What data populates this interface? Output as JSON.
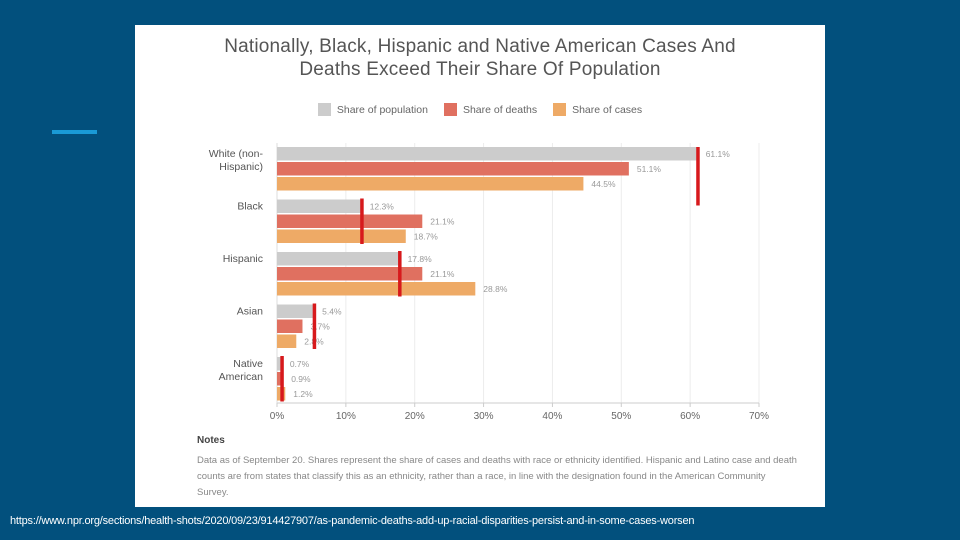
{
  "source_url": "https://www.npr.org/sections/health-shots/2020/09/23/914427907/as-pandemic-deaths-add-up-racial-disparities-persist-and-in-some-cases-worsen",
  "colors": {
    "background": "#02507d",
    "accent": "#1a9ad6",
    "marker": "#d7191c"
  },
  "notes": {
    "title": "Notes",
    "text": "Data as of September 20. Shares represent the share of cases and deaths with race or ethnicity identified. Hispanic and Latino case and death counts are from states that classify this as an ethnicity, rather than a race, in line with the designation found in the American Community Survey."
  },
  "chart_data": {
    "type": "bar",
    "orientation": "horizontal",
    "title": "Nationally, Black, Hispanic and Native American Cases And Deaths Exceed Their Share Of Population",
    "title_lines": [
      "Nationally, Black, Hispanic and Native American Cases And",
      "Deaths Exceed Their Share Of Population"
    ],
    "xlabel": "",
    "ylabel": "",
    "xlim": [
      0,
      70
    ],
    "x_ticks": [
      0,
      10,
      20,
      30,
      40,
      50,
      60,
      70
    ],
    "x_tick_labels": [
      "0%",
      "10%",
      "20%",
      "30%",
      "40%",
      "50%",
      "60%",
      "70%"
    ],
    "grid": true,
    "legend_position": "top-center",
    "categories": [
      "White (non-Hispanic)",
      "Black",
      "Hispanic",
      "Asian",
      "Native American"
    ],
    "category_label_lines": [
      [
        "White (non-",
        "Hispanic)"
      ],
      [
        "Black"
      ],
      [
        "Hispanic"
      ],
      [
        "Asian"
      ],
      [
        "Native",
        "American"
      ]
    ],
    "series": [
      {
        "name": "Share of population",
        "color": "#cccccc",
        "values": [
          61.1,
          12.3,
          17.8,
          5.4,
          0.7
        ],
        "labels": [
          "61.1%",
          "12.3%",
          "17.8%",
          "5.4%",
          "0.7%"
        ]
      },
      {
        "name": "Share of deaths",
        "color": "#e07060",
        "values": [
          51.1,
          21.1,
          21.1,
          3.7,
          0.9
        ],
        "labels": [
          "51.1%",
          "21.1%",
          "21.1%",
          "3.7%",
          "0.9%"
        ]
      },
      {
        "name": "Share of cases",
        "color": "#eeaa66",
        "values": [
          44.5,
          18.7,
          28.8,
          2.8,
          1.2
        ],
        "labels": [
          "44.5%",
          "18.7%",
          "28.8%",
          "2.8%",
          "1.2%"
        ]
      }
    ],
    "annotations": {
      "description": "Red vertical marker at population share for each group",
      "marker_values": [
        61.1,
        12.3,
        17.8,
        5.4,
        0.7
      ]
    }
  }
}
